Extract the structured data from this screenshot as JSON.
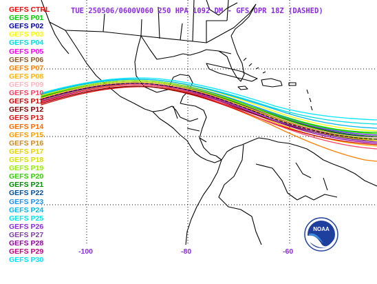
{
  "title": "TUE 250506/0600V060  250 HPA 1092 DM - GFS OPR 18Z (DASHED)",
  "legend": [
    {
      "label": "GEFS CTRL",
      "color": "#ff0000"
    },
    {
      "label": "GEFS P01",
      "color": "#00cc00"
    },
    {
      "label": "GEFS P02",
      "color": "#0000aa"
    },
    {
      "label": "GEFS P03",
      "color": "#ffff00"
    },
    {
      "label": "GEFS P04",
      "color": "#00dddd"
    },
    {
      "label": "GEFS P05",
      "color": "#ff00ff"
    },
    {
      "label": "GEFS P06",
      "color": "#8b5a2b"
    },
    {
      "label": "GEFS P07",
      "color": "#ff7f00"
    },
    {
      "label": "GEFS P08",
      "color": "#ffb400"
    },
    {
      "label": "GEFS P09",
      "color": "#ffb6c1"
    },
    {
      "label": "GEFS P10",
      "color": "#ff4060"
    },
    {
      "label": "GEFS P11",
      "color": "#d00000"
    },
    {
      "label": "GEFS P12",
      "color": "#800000"
    },
    {
      "label": "GEFS P13",
      "color": "#e01010"
    },
    {
      "label": "GEFS P14",
      "color": "#ff6a00"
    },
    {
      "label": "GEFS P15",
      "color": "#ff9a00"
    },
    {
      "label": "GEFS P16",
      "color": "#c88a20"
    },
    {
      "label": "GEFS P17",
      "color": "#e6d200"
    },
    {
      "label": "GEFS P18",
      "color": "#d8e000"
    },
    {
      "label": "GEFS P19",
      "color": "#99ee00"
    },
    {
      "label": "GEFS P20",
      "color": "#33cc00"
    },
    {
      "label": "GEFS P21",
      "color": "#008800"
    },
    {
      "label": "GEFS P22",
      "color": "#004c99"
    },
    {
      "label": "GEFS P23",
      "color": "#1e90ff"
    },
    {
      "label": "GEFS P24",
      "color": "#00b7eb"
    },
    {
      "label": "GEFS P25",
      "color": "#00e5ee"
    },
    {
      "label": "GEFS P26",
      "color": "#8a2be2"
    },
    {
      "label": "GEFS P27",
      "color": "#7b3fa0"
    },
    {
      "label": "GEFS P28",
      "color": "#9400a0"
    },
    {
      "label": "GEFS P29",
      "color": "#c00080"
    },
    {
      "label": "GEFS P30",
      "color": "#00e5ff"
    }
  ],
  "axis": {
    "lon_labels": [
      "-100",
      "-80",
      "-60"
    ]
  },
  "colors": {
    "title": "#8a2be2",
    "coastline": "#000000",
    "gridline": "#000000"
  },
  "logo_icon": "noaa-logo"
}
